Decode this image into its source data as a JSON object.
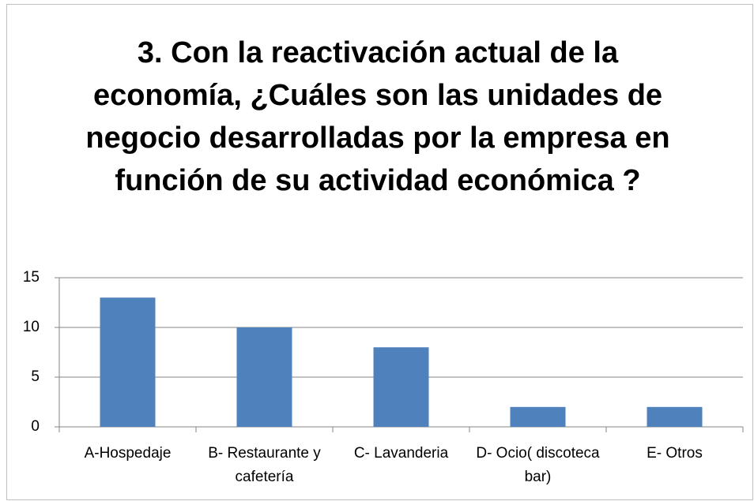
{
  "chart_data": {
    "type": "bar",
    "title": "3. Con la reactivación actual de la economía, ¿Cuáles son las unidades de negocio desarrolladas por la empresa en función de su actividad económica ?",
    "categories": [
      "A-Hospedaje",
      "B- Restaurante y cafetería",
      "C- Lavanderia",
      "D- Ocio( discoteca bar)",
      "E- Otros"
    ],
    "values": [
      13,
      10,
      8,
      2,
      2
    ],
    "color": "#4f81bd",
    "ylim": [
      0,
      15
    ],
    "yticks": [
      0,
      5,
      10,
      15
    ],
    "grid": true
  }
}
